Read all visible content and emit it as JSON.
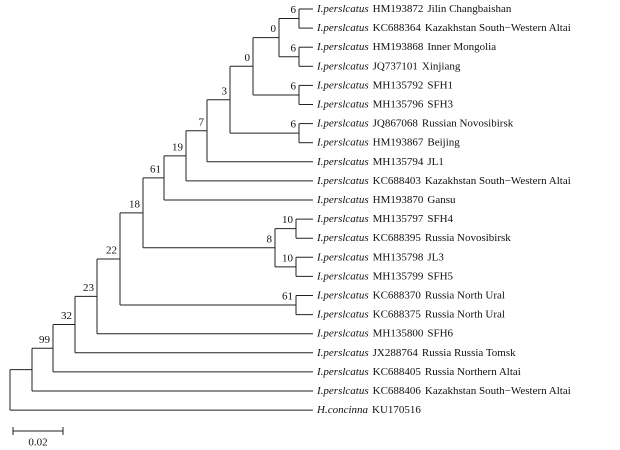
{
  "leaves": [
    {
      "species": "I.perslcatus",
      "accession": "HM193872",
      "location": "Jilin Changbaishan"
    },
    {
      "species": "I.perslcatus",
      "accession": "KC688364",
      "location": "Kazakhstan South−Western Altai"
    },
    {
      "species": "I.perslcatus",
      "accession": "HM193868",
      "location": "Inner Mongolia"
    },
    {
      "species": "I.perslcatus",
      "accession": "JQ737101",
      "location": "Xinjiang"
    },
    {
      "species": "I.perslcatus",
      "accession": "MH135792",
      "location": "SFH1"
    },
    {
      "species": "I.perslcatus",
      "accession": "MH135796",
      "location": "SFH3"
    },
    {
      "species": "I.perslcatus",
      "accession": "JQ867068",
      "location": "Russian Novosibirsk"
    },
    {
      "species": "I.perslcatus",
      "accession": "HM193867",
      "location": "Beijing"
    },
    {
      "species": "I.perslcatus",
      "accession": "MH135794",
      "location": "JL1"
    },
    {
      "species": "I.perslcatus",
      "accession": "KC688403",
      "location": "Kazakhstan South−Western Altai"
    },
    {
      "species": "I.perslcatus",
      "accession": "HM193870",
      "location": "Gansu"
    },
    {
      "species": "I.perslcatus",
      "accession": "MH135797",
      "location": "SFH4"
    },
    {
      "species": "I.perslcatus",
      "accession": "KC688395",
      "location": "Russia Novosibirsk"
    },
    {
      "species": "I.perslcatus",
      "accession": "MH135798",
      "location": "JL3"
    },
    {
      "species": "I.perslcatus",
      "accession": "MH135799",
      "location": "SFH5"
    },
    {
      "species": "I.perslcatus",
      "accession": "KC688370",
      "location": "Russia North Ural"
    },
    {
      "species": "I.perslcatus",
      "accession": "KC688375",
      "location": "Russia North Ural"
    },
    {
      "species": "I.perslcatus",
      "accession": "MH135800",
      "location": "SFH6"
    },
    {
      "species": "I.perslcatus",
      "accession": "JX288764",
      "location": "Russia Russia Tomsk"
    },
    {
      "species": "I.perslcatus",
      "accession": "KC688405",
      "location": "Russia Northern Altai"
    },
    {
      "species": "I.perslcatus",
      "accession": "KC688406",
      "location": "Kazakhstan South−Western Altai"
    },
    {
      "species": "H.concinna",
      "accession": "KU170516"
    }
  ],
  "nodes": [
    {
      "support": 6
    },
    {
      "support": 6
    },
    {
      "support": 0
    },
    {
      "support": 6
    },
    {
      "support": 0
    },
    {
      "support": 6
    },
    {
      "support": 3
    },
    {
      "support": 7
    },
    {
      "support": 19
    },
    {
      "support": 61
    },
    {
      "support": 10
    },
    {
      "support": 10
    },
    {
      "support": 8
    },
    {
      "support": 18
    },
    {
      "support": 61
    },
    {
      "support": 22
    },
    {
      "support": 23
    },
    {
      "support": 32
    },
    {
      "support": 99
    }
  ],
  "scale_bar": {
    "label": "0.02"
  }
}
